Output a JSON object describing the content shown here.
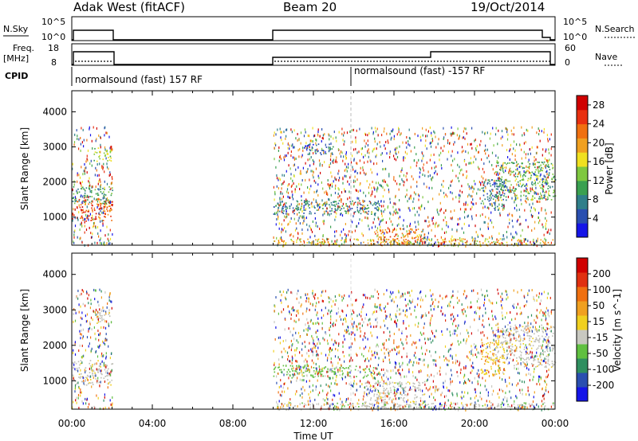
{
  "header": {
    "site": "Adak West (fitACF)",
    "beam": "Beam 20",
    "date": "19/Oct/2014"
  },
  "strip_labels": {
    "nsky": "N.Sky",
    "nsky_tick_hi": "10^5",
    "nsky_tick_lo": "10^0",
    "nsearch": "N.Search",
    "nsearch_tick_hi": "10^5",
    "nsearch_tick_lo": "10^0",
    "freq": "Freq.",
    "freq_unit": "[MHz]",
    "freq_tick_hi": "18",
    "freq_tick_lo": "8",
    "nave": "Nave",
    "nave_tick_hi": "60",
    "nave_tick_lo": "0",
    "cpid": "CPID",
    "cpid_mode_1": "normalsound (fast) 157 RF",
    "cpid_mode_2": "normalsound (fast) -157 RF"
  },
  "colors": {
    "power": [
      "#1515e8",
      "#2a4fb0",
      "#2f7f8a",
      "#3aa050",
      "#7fc840",
      "#f0e020",
      "#f0a020",
      "#f07010",
      "#e83010",
      "#d00000"
    ],
    "velocity": [
      "#1515e8",
      "#2a4fb0",
      "#2f8f60",
      "#60c040",
      "#c8c8c0",
      "#f0d020",
      "#f0a020",
      "#f07010",
      "#e03010",
      "#d00000"
    ],
    "ground_scatter": "#c0c0b8"
  },
  "chart_data": [
    {
      "type": "heatmap",
      "name": "power-panel",
      "xlabel": "",
      "ylabel": "Slant Range [km]",
      "yticks": [
        "1000",
        "2000",
        "3000",
        "4000"
      ],
      "ylim": [
        200,
        4600
      ],
      "xlim": [
        0,
        24
      ],
      "colorbar": {
        "label": "Power [dB]",
        "ticks": [
          "4",
          "8",
          "12",
          "16",
          "20",
          "24",
          "28"
        ],
        "range": [
          0,
          30
        ]
      },
      "regions": [
        {
          "t0": 0.0,
          "t1": 2.0,
          "r0": 900,
          "r1": 1600,
          "value": 24
        },
        {
          "t0": 0.0,
          "t1": 2.0,
          "r0": 1400,
          "r1": 1900,
          "value": 10
        },
        {
          "t0": 1.0,
          "t1": 2.0,
          "r0": 2600,
          "r1": 3000,
          "value": 14
        },
        {
          "t0": 10.0,
          "t1": 15.5,
          "r0": 1100,
          "r1": 1500,
          "value": 8
        },
        {
          "t0": 11.5,
          "t1": 13.0,
          "r0": 2800,
          "r1": 3100,
          "value": 6
        },
        {
          "t0": 15.0,
          "t1": 17.5,
          "r0": 250,
          "r1": 700,
          "value": 22
        },
        {
          "t0": 21.0,
          "t1": 24.0,
          "r0": 1500,
          "r1": 2600,
          "value": 12
        },
        {
          "t0": 20.3,
          "t1": 21.5,
          "r0": 1200,
          "r1": 2100,
          "value": 7
        },
        {
          "t0": 10.0,
          "t1": 24.0,
          "r0": 200,
          "r1": 400,
          "value": 18
        }
      ]
    },
    {
      "type": "heatmap",
      "name": "velocity-panel",
      "xlabel": "Time UT",
      "ylabel": "Slant Range [km]",
      "xticks": [
        "00:00",
        "04:00",
        "08:00",
        "12:00",
        "16:00",
        "20:00",
        "00:00"
      ],
      "yticks": [
        "1000",
        "2000",
        "3000",
        "4000"
      ],
      "ylim": [
        200,
        4600
      ],
      "xlim": [
        0,
        24
      ],
      "colorbar": {
        "label": "Velocity [m s^-1]",
        "ticks": [
          "200",
          "100",
          "50",
          "15",
          "-15",
          "-50",
          "-100",
          "-200"
        ],
        "range": [
          -250,
          250
        ]
      },
      "regions": [
        {
          "t0": 0.0,
          "t1": 2.0,
          "r0": 900,
          "r1": 1600,
          "value": 0
        },
        {
          "t0": 1.2,
          "t1": 2.0,
          "r0": 2600,
          "r1": 3000,
          "value": 10
        },
        {
          "t0": 10.0,
          "t1": 15.0,
          "r0": 1100,
          "r1": 1450,
          "value": -60
        },
        {
          "t0": 14.5,
          "t1": 17.5,
          "r0": 250,
          "r1": 1000,
          "value": 0
        },
        {
          "t0": 21.0,
          "t1": 24.0,
          "r0": 1400,
          "r1": 2600,
          "value": 0
        },
        {
          "t0": 20.3,
          "t1": 21.5,
          "r0": 1200,
          "r1": 2100,
          "value": 40
        },
        {
          "t0": 10.0,
          "t1": 24.0,
          "r0": 200,
          "r1": 400,
          "value": -40
        }
      ]
    }
  ]
}
